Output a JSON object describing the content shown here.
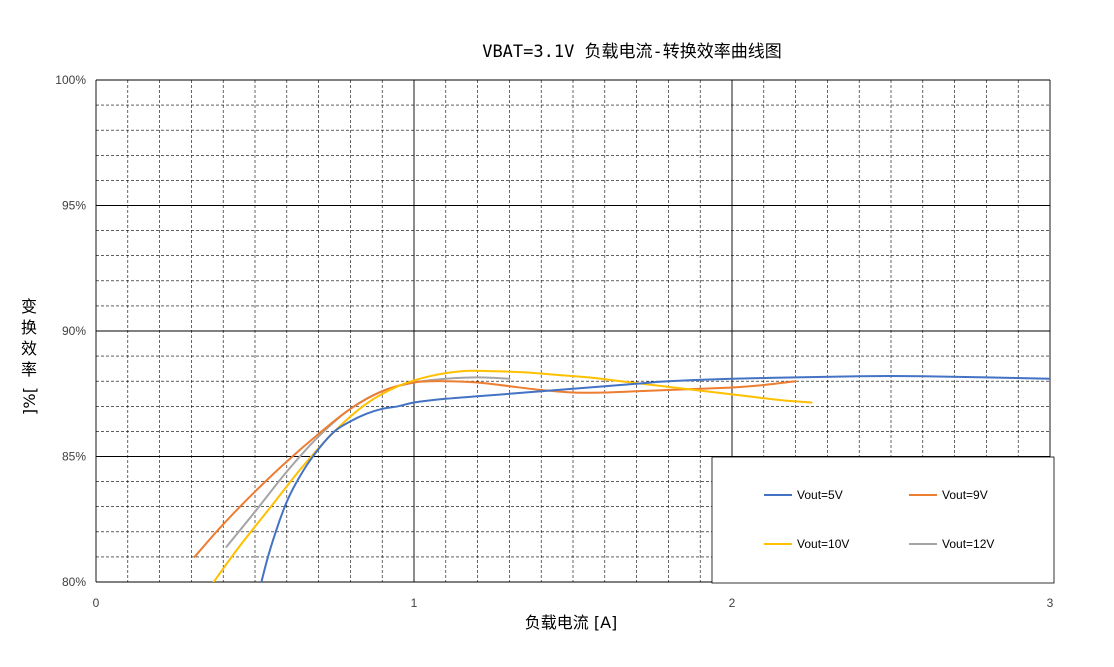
{
  "chart_data": {
    "type": "line",
    "title": "VBAT=3.1V 负载电流-转换效率曲线图",
    "xlabel": "负载电流 [A]",
    "ylabel": "变换效率[%]",
    "xlim": [
      0,
      3
    ],
    "ylim": [
      80,
      100
    ],
    "x_ticks": [
      "0",
      "1",
      "2",
      "3"
    ],
    "y_ticks": [
      "80%",
      "85%",
      "90%",
      "95%",
      "100%"
    ],
    "grid": true,
    "minor_grid": "dashed",
    "legend_position": "bottom-right",
    "series": [
      {
        "name": "Vout=5V",
        "color": "#4472C4",
        "points": [
          [
            0.52,
            80.0
          ],
          [
            0.55,
            81.4
          ],
          [
            0.6,
            83.2
          ],
          [
            0.65,
            84.4
          ],
          [
            0.7,
            85.3
          ],
          [
            0.75,
            86.0
          ],
          [
            0.8,
            86.4
          ],
          [
            0.85,
            86.7
          ],
          [
            0.9,
            86.9
          ],
          [
            0.95,
            87.0
          ],
          [
            1.0,
            87.15
          ],
          [
            1.1,
            87.3
          ],
          [
            1.2,
            87.4
          ],
          [
            1.3,
            87.5
          ],
          [
            1.4,
            87.6
          ],
          [
            1.5,
            87.7
          ],
          [
            1.6,
            87.8
          ],
          [
            1.7,
            87.9
          ],
          [
            1.8,
            88.0
          ],
          [
            2.0,
            88.1
          ],
          [
            2.2,
            88.15
          ],
          [
            2.4,
            88.2
          ],
          [
            2.6,
            88.2
          ],
          [
            2.8,
            88.15
          ],
          [
            3.0,
            88.1
          ]
        ]
      },
      {
        "name": "Vout=9V",
        "color": "#ED7D31",
        "points": [
          [
            0.31,
            81.0
          ],
          [
            0.4,
            82.3
          ],
          [
            0.5,
            83.6
          ],
          [
            0.6,
            84.8
          ],
          [
            0.7,
            85.9
          ],
          [
            0.8,
            86.9
          ],
          [
            0.9,
            87.6
          ],
          [
            1.0,
            87.95
          ],
          [
            1.1,
            88.0
          ],
          [
            1.2,
            87.95
          ],
          [
            1.3,
            87.8
          ],
          [
            1.4,
            87.65
          ],
          [
            1.5,
            87.55
          ],
          [
            1.6,
            87.55
          ],
          [
            1.7,
            87.6
          ],
          [
            1.8,
            87.65
          ],
          [
            1.9,
            87.7
          ],
          [
            2.0,
            87.75
          ],
          [
            2.1,
            87.85
          ],
          [
            2.2,
            88.0
          ]
        ]
      },
      {
        "name": "Vout=10V",
        "color": "#FFC000",
        "points": [
          [
            0.37,
            80.0
          ],
          [
            0.45,
            81.4
          ],
          [
            0.55,
            83.0
          ],
          [
            0.65,
            84.6
          ],
          [
            0.75,
            86.0
          ],
          [
            0.85,
            87.1
          ],
          [
            0.95,
            87.8
          ],
          [
            1.05,
            88.2
          ],
          [
            1.15,
            88.4
          ],
          [
            1.25,
            88.4
          ],
          [
            1.35,
            88.35
          ],
          [
            1.45,
            88.25
          ],
          [
            1.55,
            88.15
          ],
          [
            1.65,
            88.0
          ],
          [
            1.75,
            87.85
          ],
          [
            1.85,
            87.7
          ],
          [
            1.95,
            87.55
          ],
          [
            2.05,
            87.4
          ],
          [
            2.15,
            87.25
          ],
          [
            2.25,
            87.15
          ]
        ]
      },
      {
        "name": "Vout=12V",
        "color": "#A5A5A5",
        "points": [
          [
            0.41,
            81.4
          ],
          [
            0.5,
            82.8
          ],
          [
            0.6,
            84.4
          ],
          [
            0.7,
            85.8
          ],
          [
            0.8,
            86.9
          ],
          [
            0.9,
            87.6
          ],
          [
            1.0,
            87.95
          ],
          [
            1.1,
            88.1
          ],
          [
            1.2,
            88.15
          ],
          [
            1.3,
            88.1
          ]
        ]
      }
    ]
  }
}
